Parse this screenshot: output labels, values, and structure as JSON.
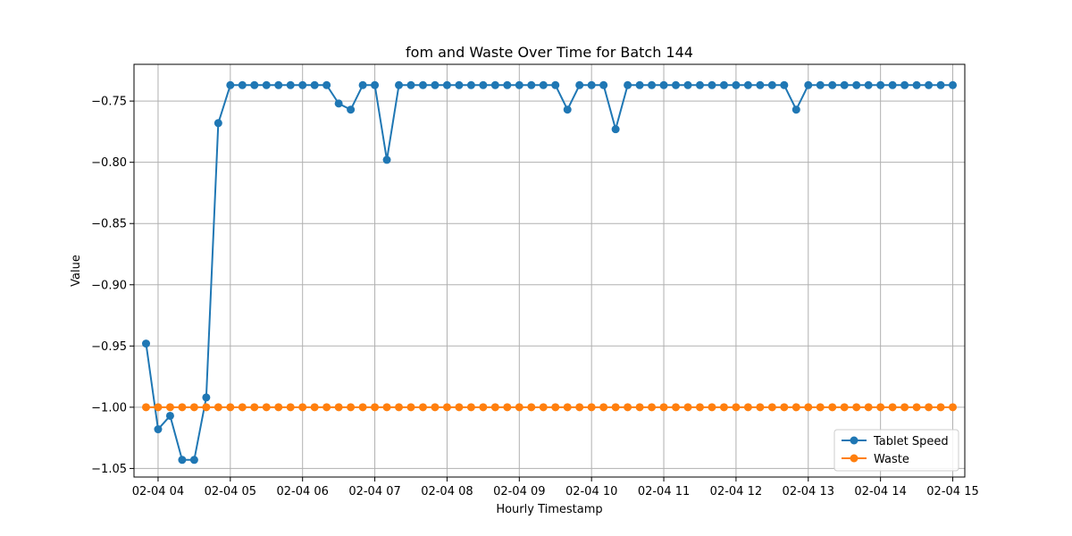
{
  "chart_data": {
    "type": "line",
    "title": "fom and Waste Over Time for Batch 144",
    "xlabel": "Hourly Timestamp",
    "ylabel": "Value",
    "x_start": "02-04 03:50",
    "x_step_minutes": 10,
    "xlim": [
      "02-04 03:40",
      "02-04 15:10"
    ],
    "ylim": [
      -1.057,
      -0.72
    ],
    "x_ticks": [
      "02-04 04",
      "02-04 05",
      "02-04 06",
      "02-04 07",
      "02-04 08",
      "02-04 09",
      "02-04 10",
      "02-04 11",
      "02-04 12",
      "02-04 13",
      "02-04 14",
      "02-04 15"
    ],
    "y_ticks": [
      -0.75,
      -0.8,
      -0.85,
      -0.9,
      -0.95,
      -1.0,
      -1.05
    ],
    "y_tick_labels": [
      "−0.75",
      "−0.80",
      "−0.85",
      "−0.90",
      "−0.95",
      "−1.00",
      "−1.05"
    ],
    "grid": true,
    "legend_position": "bottom-right",
    "series": [
      {
        "name": "Tablet Speed",
        "color": "#1f77b4",
        "values": [
          -0.948,
          -1.018,
          -1.007,
          -1.043,
          -1.043,
          -0.992,
          -0.768,
          -0.737,
          -0.737,
          -0.737,
          -0.737,
          -0.737,
          -0.737,
          -0.737,
          -0.737,
          -0.737,
          -0.752,
          -0.757,
          -0.737,
          -0.737,
          -0.798,
          -0.737,
          -0.737,
          -0.737,
          -0.737,
          -0.737,
          -0.737,
          -0.737,
          -0.737,
          -0.737,
          -0.737,
          -0.737,
          -0.737,
          -0.737,
          -0.737,
          -0.757,
          -0.737,
          -0.737,
          -0.737,
          -0.773,
          -0.737,
          -0.737,
          -0.737,
          -0.737,
          -0.737,
          -0.737,
          -0.737,
          -0.737,
          -0.737,
          -0.737,
          -0.737,
          -0.737,
          -0.737,
          -0.737,
          -0.757,
          -0.737,
          -0.737,
          -0.737,
          -0.737,
          -0.737,
          -0.737,
          -0.737,
          -0.737,
          -0.737,
          -0.737,
          -0.737,
          -0.737,
          -0.737
        ]
      },
      {
        "name": "Waste",
        "color": "#ff7f0e",
        "values": [
          -1.0,
          -1.0,
          -1.0,
          -1.0,
          -1.0,
          -1.0,
          -1.0,
          -1.0,
          -1.0,
          -1.0,
          -1.0,
          -1.0,
          -1.0,
          -1.0,
          -1.0,
          -1.0,
          -1.0,
          -1.0,
          -1.0,
          -1.0,
          -1.0,
          -1.0,
          -1.0,
          -1.0,
          -1.0,
          -1.0,
          -1.0,
          -1.0,
          -1.0,
          -1.0,
          -1.0,
          -1.0,
          -1.0,
          -1.0,
          -1.0,
          -1.0,
          -1.0,
          -1.0,
          -1.0,
          -1.0,
          -1.0,
          -1.0,
          -1.0,
          -1.0,
          -1.0,
          -1.0,
          -1.0,
          -1.0,
          -1.0,
          -1.0,
          -1.0,
          -1.0,
          -1.0,
          -1.0,
          -1.0,
          -1.0,
          -1.0,
          -1.0,
          -1.0,
          -1.0,
          -1.0,
          -1.0,
          -1.0,
          -1.0,
          -1.0,
          -1.0,
          -1.0,
          -1.0
        ]
      }
    ]
  }
}
